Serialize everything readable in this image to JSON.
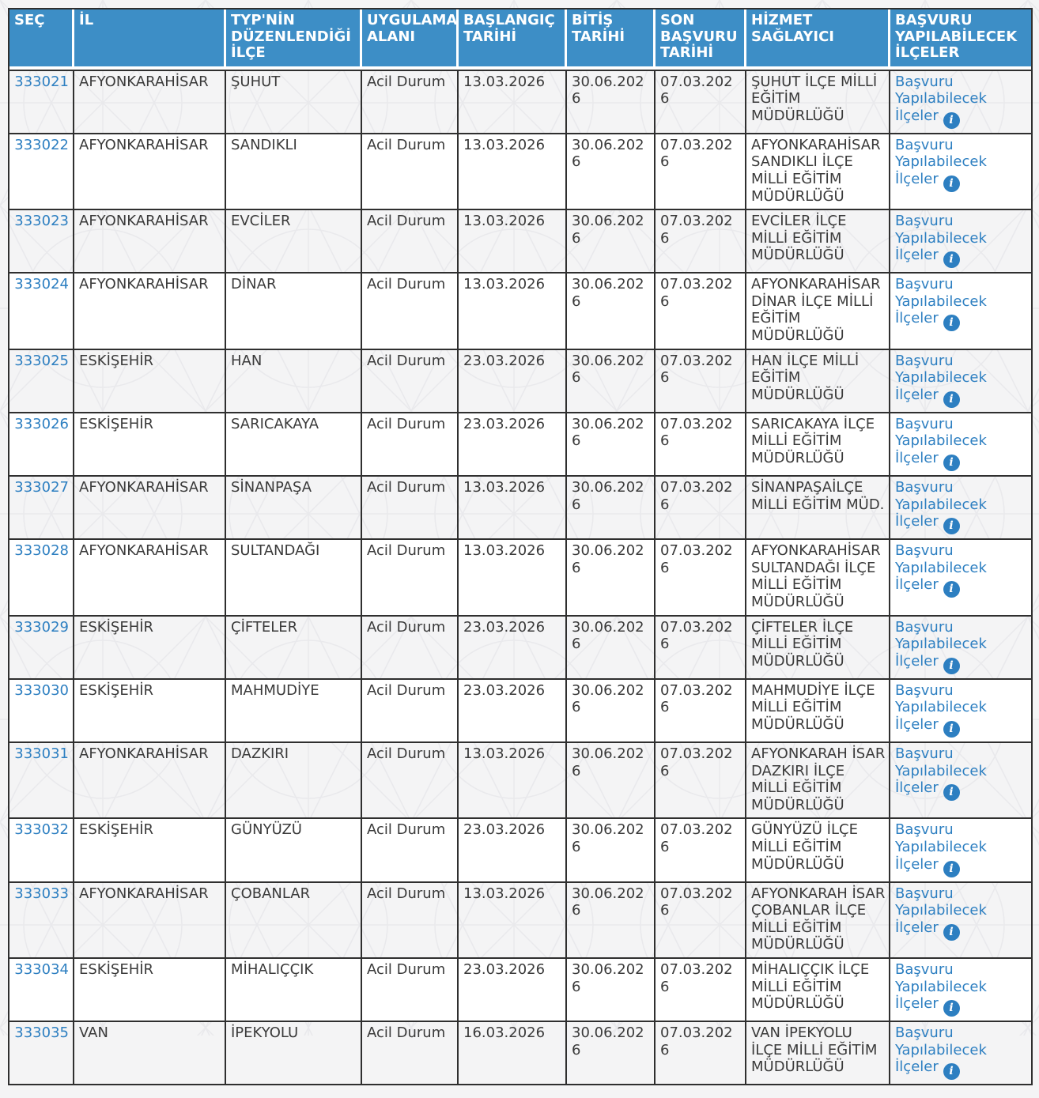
{
  "colors": {
    "header_bg": "#3D8EC6",
    "header_text": "#FFFFFF",
    "link": "#2D7FC1",
    "info_icon_bg": "#2D7FC1",
    "cell_text": "#3A3A3A",
    "border": "#2F2F2F",
    "row_even_bg": "#FFFFFF",
    "page_bg": "#F4F4F5"
  },
  "table": {
    "columns": [
      {
        "key": "id",
        "label": "SEÇ"
      },
      {
        "key": "il",
        "label": "İL"
      },
      {
        "key": "ilce",
        "label": "TYP'NİN DÜZENLENDİĞİ İLÇE"
      },
      {
        "key": "uygulama_alani",
        "label": "UYGULAMA ALANI"
      },
      {
        "key": "baslangic_tarihi",
        "label": "BAŞLANGIÇ TARİHİ"
      },
      {
        "key": "bitis_tarihi",
        "label": "BİTİŞ TARİHİ"
      },
      {
        "key": "son_basvuru_tarihi",
        "label": "SON BAŞVURU TARİHİ"
      },
      {
        "key": "hizmet_saglayici",
        "label": "HİZMET SAĞLAYICI"
      },
      {
        "key": "basvuru",
        "label": "BAŞVURU YAPILABİLECEK İLÇELER"
      }
    ],
    "link_label": "Başvuru Yapılabilecek İlçeler",
    "info_icon_glyph": "i",
    "rows": [
      {
        "id": "333021",
        "il": "AFYONKARAHİSAR",
        "ilce": "ŞUHUT",
        "uygulama_alani": "Acil Durum",
        "baslangic_tarihi": "13.03.2026",
        "bitis_tarihi": "30.06.2026",
        "son_basvuru_tarihi": "07.03.2026",
        "hizmet_saglayici": "ŞUHUT İLÇE MİLLİ EĞİTİM MÜDÜRLÜĞÜ"
      },
      {
        "id": "333022",
        "il": "AFYONKARAHİSAR",
        "ilce": "SANDIKLI",
        "uygulama_alani": "Acil Durum",
        "baslangic_tarihi": "13.03.2026",
        "bitis_tarihi": "30.06.2026",
        "son_basvuru_tarihi": "07.03.2026",
        "hizmet_saglayici": "AFYONKARAHİSAR SANDIKLI İLÇE MİLLİ EĞİTİM MÜDÜRLÜĞÜ"
      },
      {
        "id": "333023",
        "il": "AFYONKARAHİSAR",
        "ilce": "EVCİLER",
        "uygulama_alani": "Acil Durum",
        "baslangic_tarihi": "13.03.2026",
        "bitis_tarihi": "30.06.2026",
        "son_basvuru_tarihi": "07.03.2026",
        "hizmet_saglayici": "EVCİLER İLÇE MİLLİ EĞİTİM MÜDÜRLÜĞÜ"
      },
      {
        "id": "333024",
        "il": "AFYONKARAHİSAR",
        "ilce": "DİNAR",
        "uygulama_alani": "Acil Durum",
        "baslangic_tarihi": "13.03.2026",
        "bitis_tarihi": "30.06.2026",
        "son_basvuru_tarihi": "07.03.2026",
        "hizmet_saglayici": "AFYONKARAHİSAR DİNAR İLÇE MİLLİ EĞİTİM MÜDÜRLÜĞÜ"
      },
      {
        "id": "333025",
        "il": "ESKİŞEHİR",
        "ilce": "HAN",
        "uygulama_alani": "Acil Durum",
        "baslangic_tarihi": "23.03.2026",
        "bitis_tarihi": "30.06.2026",
        "son_basvuru_tarihi": "07.03.2026",
        "hizmet_saglayici": "HAN İLÇE MİLLİ EĞİTİM MÜDÜRLÜĞÜ"
      },
      {
        "id": "333026",
        "il": "ESKİŞEHİR",
        "ilce": "SARICAKAYA",
        "uygulama_alani": "Acil Durum",
        "baslangic_tarihi": "23.03.2026",
        "bitis_tarihi": "30.06.2026",
        "son_basvuru_tarihi": "07.03.2026",
        "hizmet_saglayici": "SARICAKAYA İLÇE MİLLİ EĞİTİM MÜDÜRLÜĞÜ"
      },
      {
        "id": "333027",
        "il": "AFYONKARAHİSAR",
        "ilce": "SİNANPAŞA",
        "uygulama_alani": "Acil Durum",
        "baslangic_tarihi": "13.03.2026",
        "bitis_tarihi": "30.06.2026",
        "son_basvuru_tarihi": "07.03.2026",
        "hizmet_saglayici": "SİNANPAŞAİLÇE MİLLİ EĞİTİM MÜD."
      },
      {
        "id": "333028",
        "il": "AFYONKARAHİSAR",
        "ilce": "SULTANDAĞI",
        "uygulama_alani": "Acil Durum",
        "baslangic_tarihi": "13.03.2026",
        "bitis_tarihi": "30.06.2026",
        "son_basvuru_tarihi": "07.03.2026",
        "hizmet_saglayici": "AFYONKARAHİSAR SULTANDAĞI İLÇE MİLLİ EĞİTİM MÜDÜRLÜĞÜ"
      },
      {
        "id": "333029",
        "il": "ESKİŞEHİR",
        "ilce": "ÇİFTELER",
        "uygulama_alani": "Acil Durum",
        "baslangic_tarihi": "23.03.2026",
        "bitis_tarihi": "30.06.2026",
        "son_basvuru_tarihi": "07.03.2026",
        "hizmet_saglayici": "ÇİFTELER İLÇE MİLLİ EĞİTİM MÜDÜRLÜĞÜ"
      },
      {
        "id": "333030",
        "il": "ESKİŞEHİR",
        "ilce": "MAHMUDİYE",
        "uygulama_alani": "Acil Durum",
        "baslangic_tarihi": "23.03.2026",
        "bitis_tarihi": "30.06.2026",
        "son_basvuru_tarihi": "07.03.2026",
        "hizmet_saglayici": "MAHMUDİYE İLÇE MİLLİ EĞİTİM MÜDÜRLÜĞÜ"
      },
      {
        "id": "333031",
        "il": "AFYONKARAHİSAR",
        "ilce": "DAZKIRI",
        "uygulama_alani": "Acil Durum",
        "baslangic_tarihi": "13.03.2026",
        "bitis_tarihi": "30.06.2026",
        "son_basvuru_tarihi": "07.03.2026",
        "hizmet_saglayici": "AFYONKARAH İSAR DAZKIRI İLÇE MİLLİ EĞİTİM MÜDÜRLÜĞÜ"
      },
      {
        "id": "333032",
        "il": "ESKİŞEHİR",
        "ilce": "GÜNYÜZÜ",
        "uygulama_alani": "Acil Durum",
        "baslangic_tarihi": "23.03.2026",
        "bitis_tarihi": "30.06.2026",
        "son_basvuru_tarihi": "07.03.2026",
        "hizmet_saglayici": "GÜNYÜZÜ İLÇE MİLLİ EĞİTİM MÜDÜRLÜĞÜ"
      },
      {
        "id": "333033",
        "il": "AFYONKARAHİSAR",
        "ilce": "ÇOBANLAR",
        "uygulama_alani": "Acil Durum",
        "baslangic_tarihi": "13.03.2026",
        "bitis_tarihi": "30.06.2026",
        "son_basvuru_tarihi": "07.03.2026",
        "hizmet_saglayici": "AFYONKARAH İSAR ÇOBANLAR İLÇE MİLLİ EĞİTİM MÜDÜRLÜĞÜ"
      },
      {
        "id": "333034",
        "il": "ESKİŞEHİR",
        "ilce": "MİHALIÇÇIK",
        "uygulama_alani": "Acil Durum",
        "baslangic_tarihi": "23.03.2026",
        "bitis_tarihi": "30.06.2026",
        "son_basvuru_tarihi": "07.03.2026",
        "hizmet_saglayici": "MİHALIÇÇIK İLÇE MİLLİ EĞİTİM MÜDÜRLÜĞÜ"
      },
      {
        "id": "333035",
        "il": "VAN",
        "ilce": "İPEKYOLU",
        "uygulama_alani": "Acil Durum",
        "baslangic_tarihi": "16.03.2026",
        "bitis_tarihi": "30.06.2026",
        "son_basvuru_tarihi": "07.03.2026",
        "hizmet_saglayici": "VAN İPEKYOLU İLÇE MİLLİ EĞİTİM MÜDÜRLÜĞÜ"
      }
    ]
  }
}
